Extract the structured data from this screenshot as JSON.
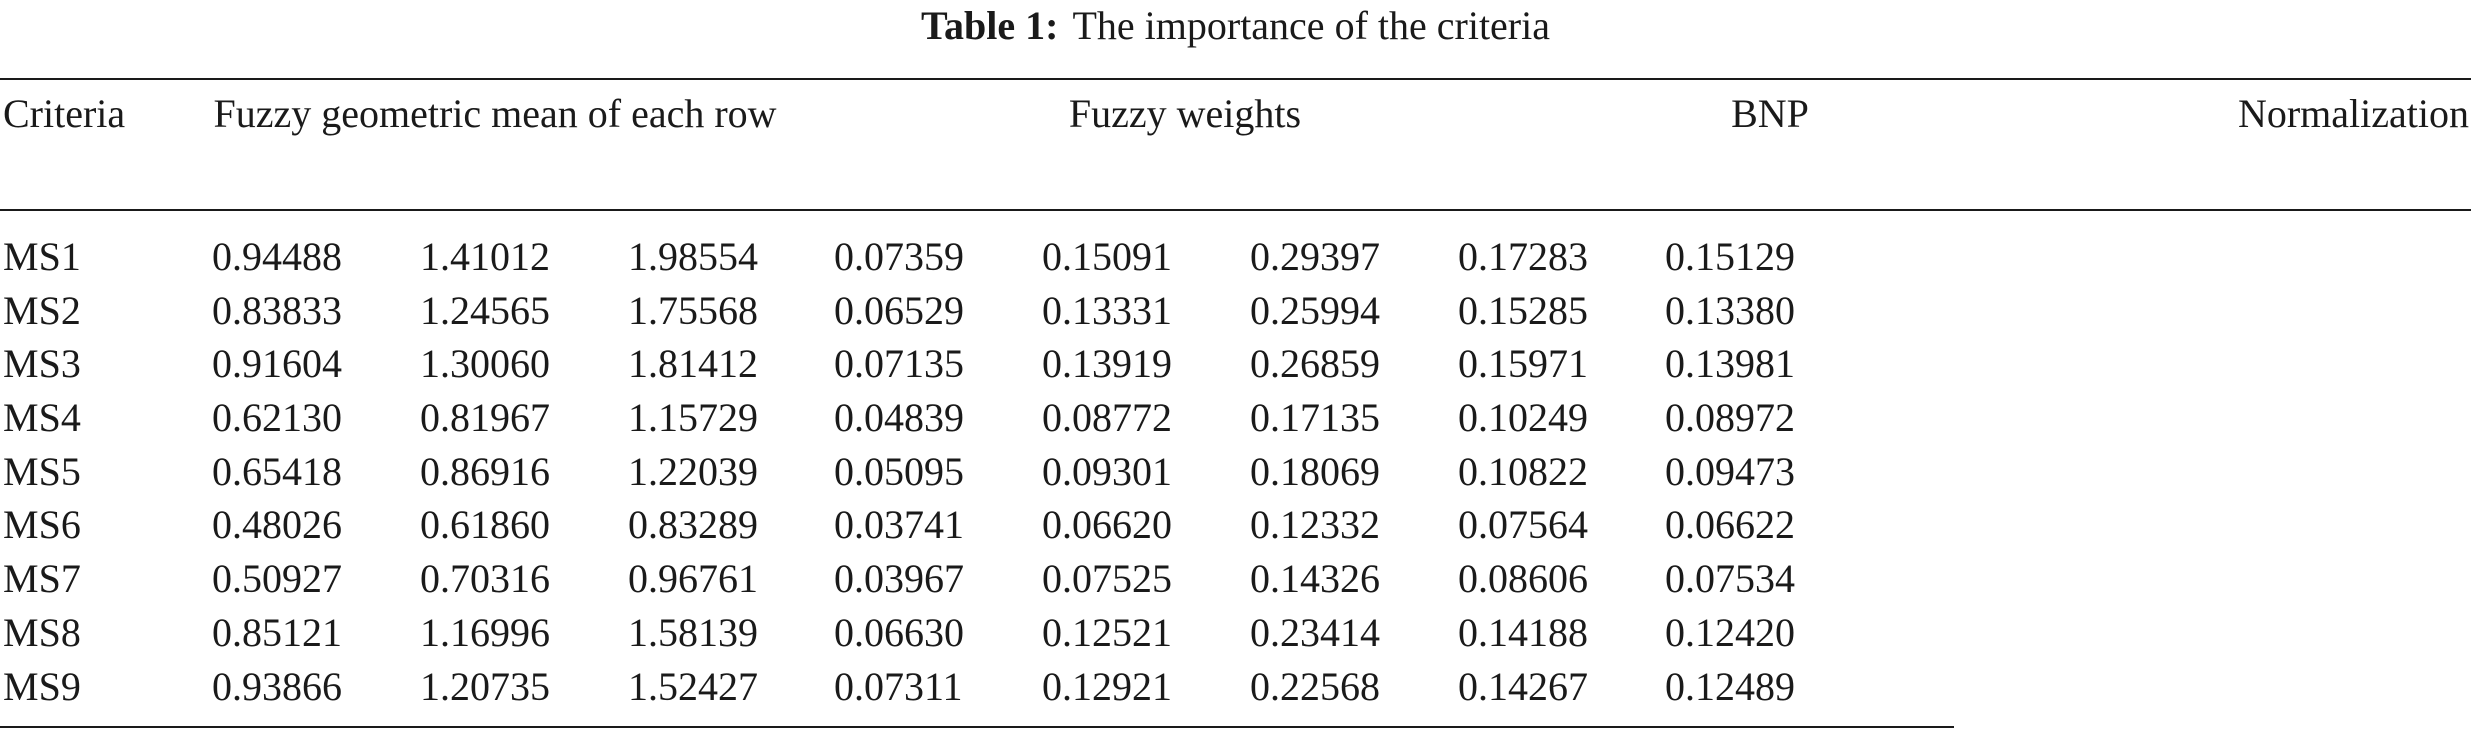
{
  "caption": {
    "label": "Table 1:",
    "text": "The importance of the criteria"
  },
  "table": {
    "headers": {
      "criteria": "Criteria",
      "fuzzy_geometric_mean": "Fuzzy geometric mean of each row",
      "fuzzy_weights": "Fuzzy weights",
      "bnp": "BNP",
      "normalization": "Normalization"
    },
    "rows": [
      [
        "MS1",
        "0.94488",
        "1.41012",
        "1.98554",
        "0.07359",
        "0.15091",
        "0.29397",
        "0.17283",
        "0.15129"
      ],
      [
        "MS2",
        "0.83833",
        "1.24565",
        "1.75568",
        "0.06529",
        "0.13331",
        "0.25994",
        "0.15285",
        "0.13380"
      ],
      [
        "MS3",
        "0.91604",
        "1.30060",
        "1.81412",
        "0.07135",
        "0.13919",
        "0.26859",
        "0.15971",
        "0.13981"
      ],
      [
        "MS4",
        "0.62130",
        "0.81967",
        "1.15729",
        "0.04839",
        "0.08772",
        "0.17135",
        "0.10249",
        "0.08972"
      ],
      [
        "MS5",
        "0.65418",
        "0.86916",
        "1.22039",
        "0.05095",
        "0.09301",
        "0.18069",
        "0.10822",
        "0.09473"
      ],
      [
        "MS6",
        "0.48026",
        "0.61860",
        "0.83289",
        "0.03741",
        "0.06620",
        "0.12332",
        "0.07564",
        "0.06622"
      ],
      [
        "MS7",
        "0.50927",
        "0.70316",
        "0.96761",
        "0.03967",
        "0.07525",
        "0.14326",
        "0.08606",
        "0.07534"
      ],
      [
        "MS8",
        "0.85121",
        "1.16996",
        "1.58139",
        "0.06630",
        "0.12521",
        "0.23414",
        "0.14188",
        "0.12420"
      ],
      [
        "MS9",
        "0.93866",
        "1.20735",
        "1.52427",
        "0.07311",
        "0.12921",
        "0.22568",
        "0.14267",
        "0.12489"
      ]
    ]
  }
}
